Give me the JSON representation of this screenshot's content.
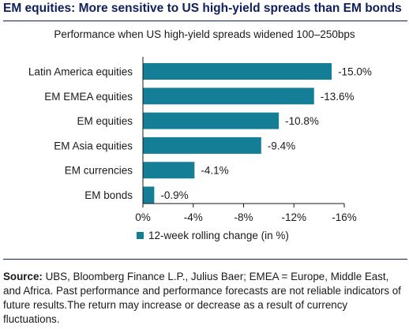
{
  "header": {
    "title": "EM equities: More sensitive to US high-yield spreads than EM bonds",
    "subtitle": "Performance when US high-yield spreads widened 100–250bps"
  },
  "footer": {
    "source_label": "Source:",
    "source_text": " UBS, Bloomberg Finance L.P., Julius Baer; EMEA = Europe, Middle East, and Africa. Past performance and performance forecasts are not reliable indicators of future results.The return may increase or decrease as a result of currency fluctuations."
  },
  "chart_data": {
    "type": "bar",
    "orientation": "horizontal",
    "categories": [
      "Latin America equities",
      "EM EMEA equities",
      "EM equities",
      "EM Asia equities",
      "EM currencies",
      "EM bonds"
    ],
    "series": [
      {
        "name": "12-week rolling change (in %)",
        "values": [
          -15.0,
          -13.6,
          -10.8,
          -9.4,
          -4.1,
          -0.9
        ],
        "data_labels": [
          "-15.0%",
          "-13.6%",
          "-10.8%",
          "-9.4%",
          "-4.1%",
          "-0.9%"
        ]
      }
    ],
    "xlim": [
      0,
      -16
    ],
    "xticks": [
      0,
      -4,
      -8,
      -12,
      -16
    ],
    "xtick_labels": [
      "0%",
      "-4%",
      "-8%",
      "-12%",
      "-16%"
    ],
    "grid": false,
    "legend": "bottom-left",
    "colors": {
      "bar": "#147e97",
      "axis": "#1a1a1a",
      "title": "#0f1f5c"
    }
  }
}
